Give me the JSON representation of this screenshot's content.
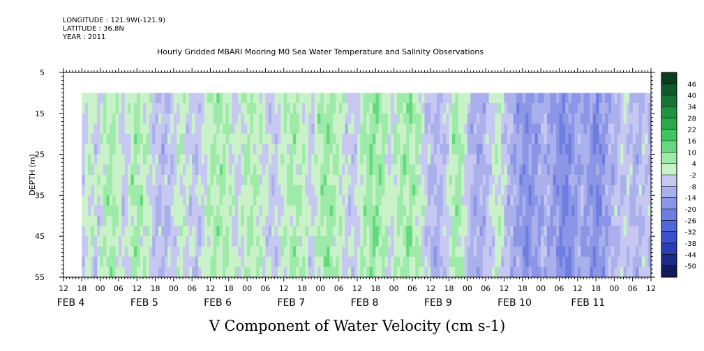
{
  "header": {
    "longitude": "LONGITUDE : 121.9W(-121.9)",
    "latitude": "LATITUDE : 36.8N",
    "year": "YEAR : 2011",
    "title": "Hourly Gridded MBARI Mooring M0 Sea Water Temperature and Salinity Observations"
  },
  "chart_data": {
    "type": "heatmap",
    "title": "Hourly Gridded MBARI Mooring M0 Sea Water Temperature and Salinity Observations",
    "xlabel": "V Component of Water Velocity (cm s-1)",
    "ylabel": "DEPTH (m)",
    "x_hours_start": 12,
    "x_hours_end": 204,
    "data_hour_start": 18,
    "data_depth_top": 10,
    "y_range": [
      5,
      55
    ],
    "y_ticks": [
      5,
      15,
      25,
      35,
      45,
      55
    ],
    "x_tick_labels": [
      "12",
      "18",
      "00",
      "06",
      "12",
      "18",
      "00",
      "06",
      "12",
      "18",
      "00",
      "06",
      "12",
      "18",
      "00",
      "06",
      "12",
      "18",
      "00",
      "06",
      "12",
      "18",
      "00",
      "06",
      "12",
      "18",
      "00",
      "06",
      "12",
      "18",
      "00",
      "06",
      "12"
    ],
    "date_labels": [
      {
        "hour": 24,
        "text": "FEB  4"
      },
      {
        "hour": 48,
        "text": "FEB  5"
      },
      {
        "hour": 72,
        "text": "FEB  6"
      },
      {
        "hour": 96,
        "text": "FEB  7"
      },
      {
        "hour": 120,
        "text": "FEB  8"
      },
      {
        "hour": 144,
        "text": "FEB  9"
      },
      {
        "hour": 168,
        "text": "FEB 10"
      },
      {
        "hour": 192,
        "text": "FEB 11"
      }
    ],
    "colorbar_labels": [
      "46",
      "40",
      "34",
      "28",
      "22",
      "16",
      "10",
      "4",
      "-2",
      "-8",
      "-14",
      "-20",
      "-26",
      "-32",
      "-38",
      "-44",
      "-50"
    ],
    "colorbar_colors": [
      "#0a3d1e",
      "#11582a",
      "#197334",
      "#21903f",
      "#2aa84a",
      "#3fc45e",
      "#64d97d",
      "#9eeaa8",
      "#c9f2c9",
      "#c6c8f2",
      "#aab0ec",
      "#8c96e6",
      "#6e7ee0",
      "#5267d9",
      "#3a50cc",
      "#2a3cb0",
      "#1c2a88",
      "#101a5c"
    ],
    "velocity_profile": [
      {
        "hour": 18,
        "v": -6
      },
      {
        "hour": 20,
        "v": 2
      },
      {
        "hour": 23,
        "v": -4
      },
      {
        "hour": 26,
        "v": 5
      },
      {
        "hour": 29,
        "v": 4
      },
      {
        "hour": 32,
        "v": -5
      },
      {
        "hour": 35,
        "v": 6
      },
      {
        "hour": 39,
        "v": 2
      },
      {
        "hour": 42,
        "v": -7
      },
      {
        "hour": 45,
        "v": -8
      },
      {
        "hour": 48,
        "v": -4
      },
      {
        "hour": 50,
        "v": 2
      },
      {
        "hour": 53,
        "v": -3
      },
      {
        "hour": 56,
        "v": -6
      },
      {
        "hour": 60,
        "v": 3
      },
      {
        "hour": 63,
        "v": 6
      },
      {
        "hour": 66,
        "v": 2
      },
      {
        "hour": 69,
        "v": -3
      },
      {
        "hour": 72,
        "v": 4
      },
      {
        "hour": 75,
        "v": 3
      },
      {
        "hour": 78,
        "v": -2
      },
      {
        "hour": 81,
        "v": -6
      },
      {
        "hour": 84,
        "v": 2
      },
      {
        "hour": 87,
        "v": 5
      },
      {
        "hour": 90,
        "v": 3
      },
      {
        "hour": 93,
        "v": -4
      },
      {
        "hour": 96,
        "v": 5
      },
      {
        "hour": 98,
        "v": 7
      },
      {
        "hour": 101,
        "v": 4
      },
      {
        "hour": 104,
        "v": -2
      },
      {
        "hour": 107,
        "v": -6
      },
      {
        "hour": 110,
        "v": 4
      },
      {
        "hour": 113,
        "v": 8
      },
      {
        "hour": 116,
        "v": 6
      },
      {
        "hour": 119,
        "v": -3
      },
      {
        "hour": 122,
        "v": 5
      },
      {
        "hour": 125,
        "v": 7
      },
      {
        "hour": 128,
        "v": 3
      },
      {
        "hour": 131,
        "v": -6
      },
      {
        "hour": 134,
        "v": -10
      },
      {
        "hour": 137,
        "v": -5
      },
      {
        "hour": 140,
        "v": 6
      },
      {
        "hour": 142,
        "v": 4
      },
      {
        "hour": 145,
        "v": -9
      },
      {
        "hour": 148,
        "v": -12
      },
      {
        "hour": 151,
        "v": -6
      },
      {
        "hour": 154,
        "v": 2
      },
      {
        "hour": 157,
        "v": -8
      },
      {
        "hour": 160,
        "v": -13
      },
      {
        "hour": 163,
        "v": -18
      },
      {
        "hour": 166,
        "v": -15
      },
      {
        "hour": 169,
        "v": -10
      },
      {
        "hour": 172,
        "v": -14
      },
      {
        "hour": 175,
        "v": -20
      },
      {
        "hour": 178,
        "v": -17
      },
      {
        "hour": 181,
        "v": -11
      },
      {
        "hour": 184,
        "v": -16
      },
      {
        "hour": 187,
        "v": -19
      },
      {
        "hour": 190,
        "v": -12
      },
      {
        "hour": 193,
        "v": -8
      },
      {
        "hour": 196,
        "v": -4
      },
      {
        "hour": 199,
        "v": -10
      },
      {
        "hour": 202,
        "v": -6
      },
      {
        "hour": 204,
        "v": -8
      }
    ]
  }
}
